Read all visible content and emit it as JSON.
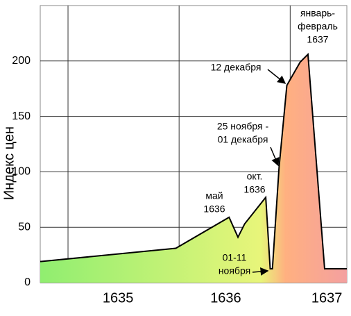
{
  "chart_data": {
    "type": "area",
    "y_label": "Индекс цен",
    "x": [
      1634.75,
      1635.97,
      1636.45,
      1636.53,
      1636.59,
      1636.78,
      1636.82,
      1636.84,
      1636.9,
      1636.97,
      1637.09,
      1637.16,
      1637.31,
      1637.51
    ],
    "values": [
      19,
      31,
      59,
      41,
      53,
      77,
      12.5,
      12.5,
      104,
      178,
      199,
      206,
      12.5,
      12.5
    ],
    "colors": [
      "#90ee70",
      "#e8f57a",
      "#ffb080",
      "#f4a0a0"
    ],
    "xlim": [
      1634.75,
      1637.51
    ],
    "xticks": [
      {
        "value": 1635.45,
        "label": "1635"
      },
      {
        "value": 1636.42,
        "label": "1636"
      },
      {
        "value": 1637.33,
        "label": "1637"
      }
    ],
    "xgrid": [
      1635,
      1636,
      1637
    ],
    "ylim": [
      0,
      250
    ],
    "yticks": [
      0,
      50,
      100,
      150,
      200
    ],
    "grid": true,
    "annotations": [
      {
        "lines": [
          "январь-",
          "февраль",
          "1637"
        ]
      },
      {
        "lines": [
          "12 декабря"
        ]
      },
      {
        "lines": [
          "25 ноября -",
          "01 декабря"
        ]
      },
      {
        "lines": [
          "окт.",
          "1636"
        ]
      },
      {
        "lines": [
          "май",
          "1636"
        ]
      },
      {
        "lines": [
          "01-11",
          "ноября"
        ]
      }
    ]
  }
}
